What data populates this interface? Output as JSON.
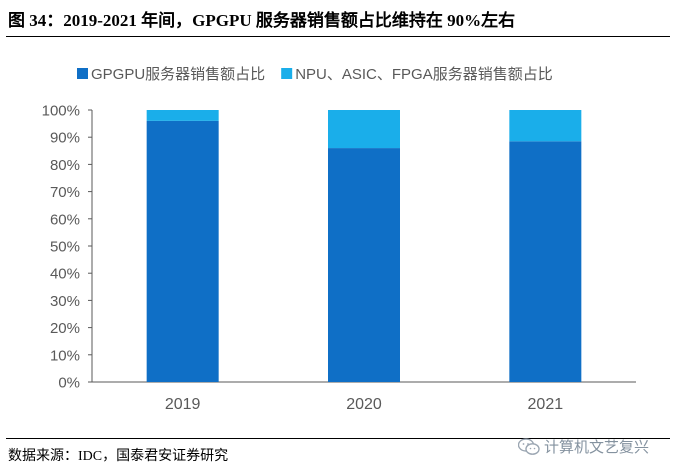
{
  "figure": {
    "title": "图 34：2019-2021 年间，GPGPU 服务器销售额占比维持在 90%左右",
    "source": "数据来源：IDC，国泰君安证券研究",
    "watermark": "计算机文艺复兴"
  },
  "chart_data": {
    "type": "bar",
    "stacked": true,
    "categories": [
      "2019",
      "2020",
      "2021"
    ],
    "series": [
      {
        "name": "GPGPU服务器销售额占比",
        "values": [
          96,
          86,
          88.5
        ],
        "color": "#0f6fc6"
      },
      {
        "name": "NPU、ASIC、FPGA服务器销售额占比",
        "values": [
          4,
          14,
          11.5
        ],
        "color": "#1aaeea"
      }
    ],
    "yticks": [
      "0%",
      "10%",
      "20%",
      "30%",
      "40%",
      "50%",
      "60%",
      "70%",
      "80%",
      "90%",
      "100%"
    ],
    "ylim": [
      0,
      100
    ],
    "title": "",
    "xlabel": "",
    "ylabel": "",
    "legend": "top",
    "grid": false
  }
}
